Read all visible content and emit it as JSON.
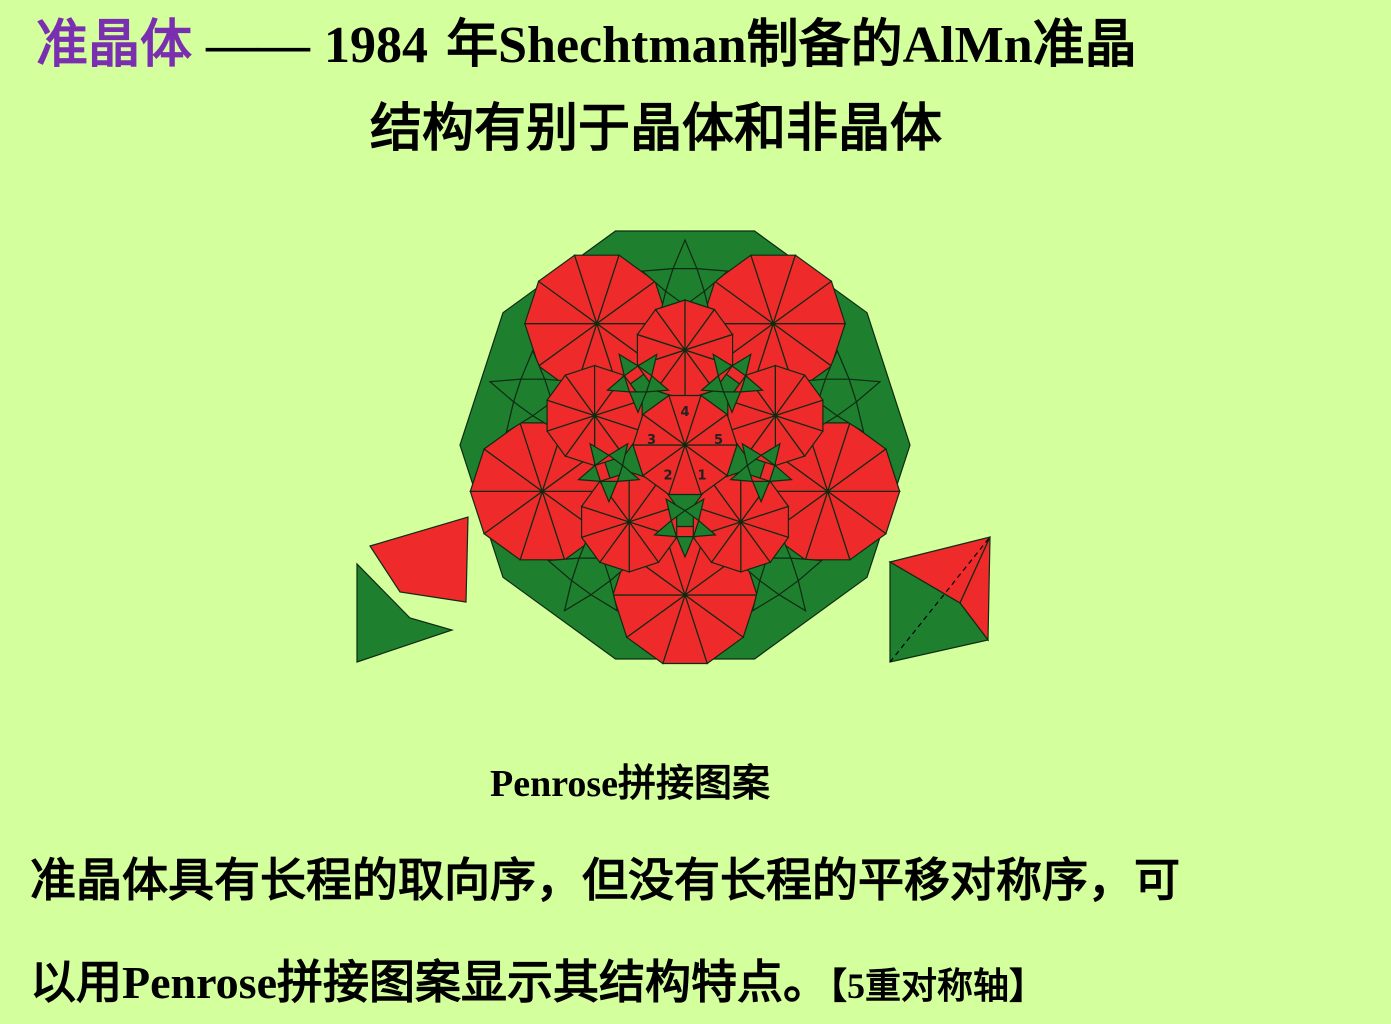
{
  "header": {
    "topic": "准晶体",
    "dash": "——",
    "line1_year": "1984",
    "line1_year_suffix": " 年",
    "line1_name": "Shechtman",
    "line1_mid": "制备的",
    "line1_alloy": "AlMn",
    "line1_end": "准晶",
    "line2": "结构有别于晶体和非晶体"
  },
  "figure": {
    "caption_latin": "Penrose",
    "caption_cn": "拼接图案",
    "center_labels": [
      "1",
      "2",
      "3",
      "4",
      "5"
    ],
    "colors": {
      "red": "#ee2a2a",
      "green": "#1e7f2e",
      "outline": "#0f2a12"
    }
  },
  "body": {
    "line1": "准晶体具有长程的取向序，但没有长程的平移对称序，可",
    "line2_a": "以用",
    "line2_latin": "Penrose",
    "line2_b": "拼接图案显示其结构特点。",
    "note_open": "【",
    "note_num": "5",
    "note_text": "重对称轴",
    "note_close": "】"
  }
}
